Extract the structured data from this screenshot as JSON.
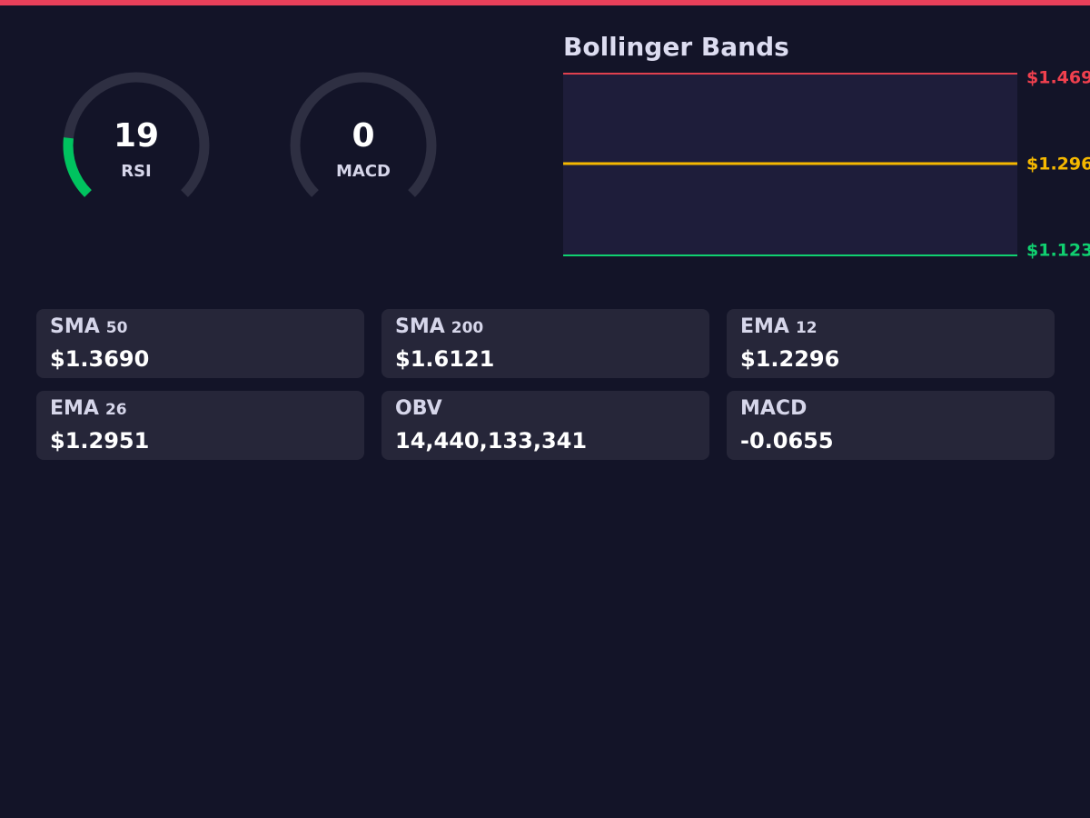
{
  "gauges": [
    {
      "value": 19,
      "label": "RSI",
      "range": [
        0,
        100
      ],
      "color": "#00c35f"
    },
    {
      "value": 0,
      "label": "MACD",
      "range": [
        0,
        100
      ],
      "color": "#00c35f"
    }
  ],
  "bollinger": {
    "title": "Bollinger Bands",
    "upper": "$1.469",
    "middle": "$1.296",
    "lower": "$1.123"
  },
  "indicators": [
    {
      "name": "SMA",
      "period": 50,
      "value": "$1.3690"
    },
    {
      "name": "SMA",
      "period": 200,
      "value": "$1.6121"
    },
    {
      "name": "EMA",
      "period": 12,
      "value": "$1.2296"
    },
    {
      "name": "EMA",
      "period": 26,
      "value": "$1.2951"
    },
    {
      "name": "OBV",
      "value": "14,440,133,341"
    },
    {
      "name": "MACD",
      "value": "-0.0655"
    }
  ]
}
